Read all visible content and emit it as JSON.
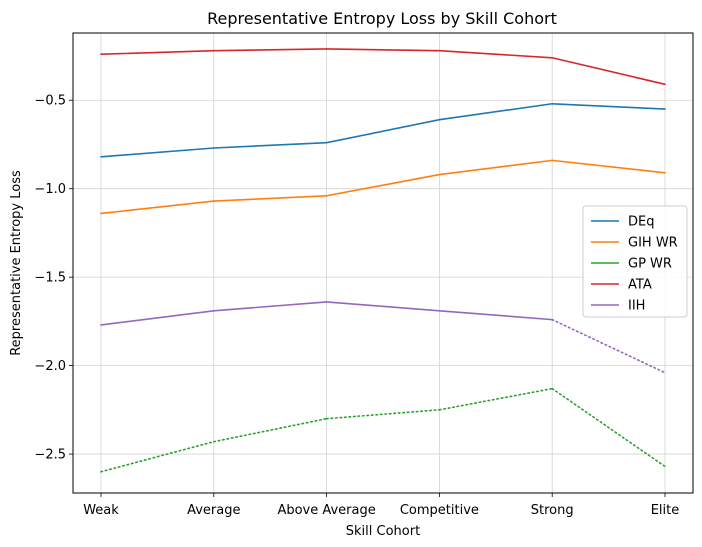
{
  "chart_data": {
    "type": "line",
    "title": "Representative Entropy Loss by Skill Cohort",
    "xlabel": "Skill Cohort",
    "ylabel": "Representative Entropy Loss",
    "categories": [
      "Weak",
      "Average",
      "Above Average",
      "Competitive",
      "Strong",
      "Elite"
    ],
    "ylim": [
      -2.72,
      -0.12
    ],
    "yticks": [
      -2.5,
      -2.0,
      -1.5,
      -1.0,
      -0.5
    ],
    "ytick_labels": [
      "−2.5",
      "−2.0",
      "−1.5",
      "−1.0",
      "−0.5"
    ],
    "grid": true,
    "legend_position": "center-right",
    "series": [
      {
        "name": "DEq",
        "color": "#1f77b4",
        "values": [
          -0.82,
          -0.77,
          -0.74,
          -0.61,
          -0.52,
          -0.55
        ],
        "style": [
          "solid",
          "solid",
          "solid",
          "solid",
          "solid"
        ]
      },
      {
        "name": "GIH WR",
        "color": "#ff7f0e",
        "values": [
          -1.14,
          -1.07,
          -1.04,
          -0.92,
          -0.84,
          -0.91
        ],
        "style": [
          "solid",
          "solid",
          "solid",
          "solid",
          "solid"
        ]
      },
      {
        "name": "GP WR",
        "color": "#2ca02c",
        "values": [
          -2.6,
          -2.43,
          -2.3,
          -2.25,
          -2.13,
          -2.57
        ],
        "style": [
          "dotted",
          "dotted",
          "dotted",
          "dotted",
          "dotted"
        ]
      },
      {
        "name": "ATA",
        "color": "#d62728",
        "values": [
          -0.24,
          -0.22,
          -0.21,
          -0.22,
          -0.26,
          -0.41
        ],
        "style": [
          "solid",
          "solid",
          "solid",
          "solid",
          "solid"
        ]
      },
      {
        "name": "IIH",
        "color": "#9467bd",
        "values": [
          -1.77,
          -1.69,
          -1.64,
          -1.69,
          -1.74,
          -2.04
        ],
        "style": [
          "solid",
          "solid",
          "solid",
          "solid",
          "dotted"
        ]
      }
    ]
  }
}
